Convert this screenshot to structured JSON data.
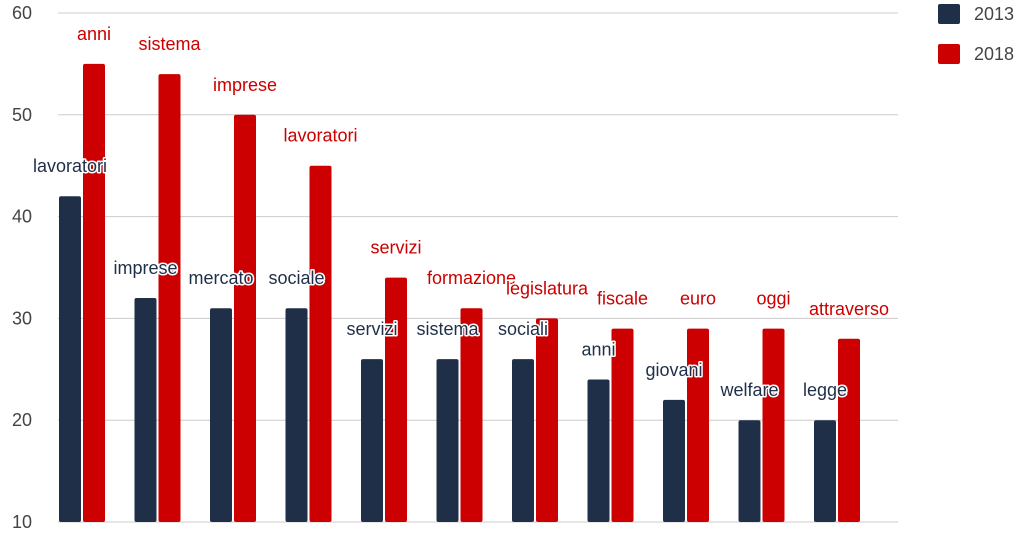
{
  "chart_data": {
    "type": "bar",
    "title": "",
    "xlabel": "",
    "ylabel": "",
    "ylim": [
      10,
      60
    ],
    "yticks": [
      10,
      20,
      30,
      40,
      50,
      60
    ],
    "grid": true,
    "legend_position": "top-right",
    "series": [
      {
        "name": "2013",
        "color": "#1f2f48",
        "values": [
          42,
          32,
          31,
          31,
          26,
          26,
          26,
          24,
          22,
          20,
          20
        ],
        "labels": [
          "lavoratori",
          "imprese",
          "mercato",
          "sociale",
          "servizi",
          "sistema",
          "sociali",
          "anni",
          "giovani",
          "welfare",
          "legge"
        ]
      },
      {
        "name": "2018",
        "color": "#cc0000",
        "values": [
          55,
          54,
          50,
          45,
          34,
          31,
          30,
          29,
          29,
          29,
          28
        ],
        "labels": [
          "anni",
          "sistema",
          "imprese",
          "lavoratori",
          "servizi",
          "formazione",
          "legislatura",
          "fiscale",
          "euro",
          "oggi",
          "attraverso"
        ]
      }
    ]
  }
}
